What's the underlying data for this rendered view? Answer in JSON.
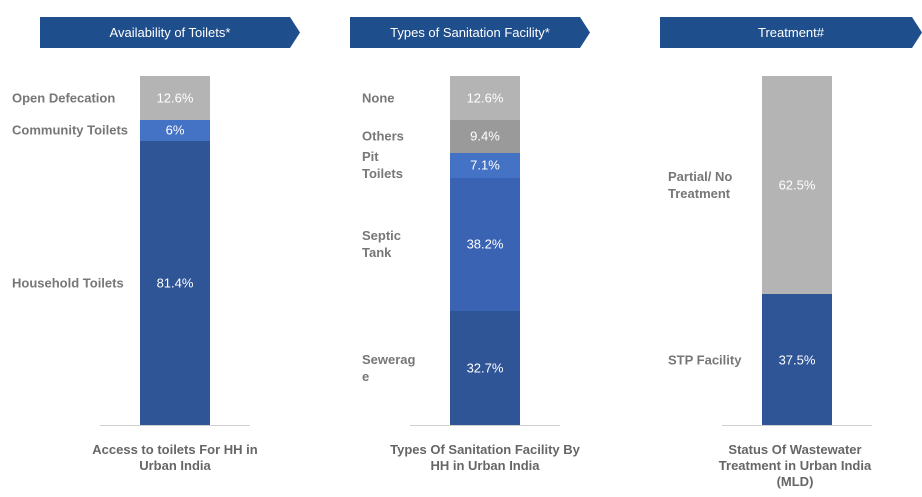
{
  "chart_data": [
    {
      "type": "bar",
      "stacked": true,
      "title": "Availability of Toilets*",
      "categories": [
        "Access to toilets For HH in Urban India"
      ],
      "series": [
        {
          "name": "Household Toilets",
          "color": "#2f5597",
          "values": [
            81.4
          ],
          "value_labels": [
            "81.4%"
          ]
        },
        {
          "name": "Community Toilets",
          "color": "#4472c4",
          "values": [
            6
          ],
          "value_labels": [
            "6%"
          ]
        },
        {
          "name": "Open Defecation",
          "color": "#b4b4b4",
          "values": [
            12.6
          ],
          "value_labels": [
            "12.6%"
          ]
        }
      ]
    },
    {
      "type": "bar",
      "stacked": true,
      "title": "Types of Sanitation Facility*",
      "categories": [
        "Types Of Sanitation Facility By HH in Urban India"
      ],
      "series": [
        {
          "name": "Sewerage",
          "color": "#2f5597",
          "values": [
            32.7
          ],
          "value_labels": [
            "32.7%"
          ]
        },
        {
          "name": "Septic Tank",
          "color": "#3a63b4",
          "values": [
            38.2
          ],
          "value_labels": [
            "38.2%"
          ]
        },
        {
          "name": "Pit Toilets",
          "color": "#4472c4",
          "values": [
            7.1
          ],
          "value_labels": [
            "7.1%"
          ]
        },
        {
          "name": "Others",
          "color": "#9a9a9a",
          "values": [
            9.4
          ],
          "value_labels": [
            "9.4%"
          ]
        },
        {
          "name": "None",
          "color": "#b4b4b4",
          "values": [
            12.6
          ],
          "value_labels": [
            "12.6%"
          ]
        }
      ]
    },
    {
      "type": "bar",
      "stacked": true,
      "title": "Treatment#",
      "categories": [
        "Status Of Wastewater Treatment in Urban India (MLD)"
      ],
      "series": [
        {
          "name": "STP Facility",
          "color": "#2f5597",
          "values": [
            37.5
          ],
          "value_labels": [
            "37.5%"
          ]
        },
        {
          "name": "Partial/ No Treatment",
          "color": "#b4b4b4",
          "values": [
            62.5
          ],
          "value_labels": [
            "62.5%"
          ]
        }
      ]
    }
  ]
}
